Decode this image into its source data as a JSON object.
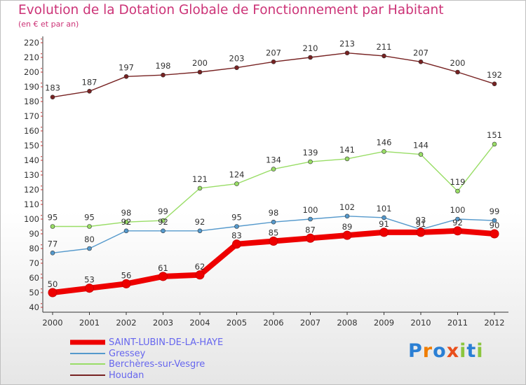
{
  "header": {
    "title": "Evolution de la Dotation Globale de Fonctionnement par Habitant",
    "subtitle": "(en € et par an)"
  },
  "chart_data": {
    "type": "line",
    "title": "Evolution de la Dotation Globale de Fonctionnement par Habitant",
    "subtitle": "(en € et par an)",
    "xlabel": "",
    "ylabel": "",
    "ylim": [
      40,
      220
    ],
    "yticks": [
      40,
      50,
      60,
      70,
      80,
      90,
      100,
      110,
      120,
      130,
      140,
      150,
      160,
      170,
      180,
      190,
      200,
      210,
      220
    ],
    "grid": false,
    "legend": "bottom-left",
    "categories": [
      "2000",
      "2001",
      "2002",
      "2003",
      "2004",
      "2005",
      "2006",
      "2007",
      "2008",
      "2009",
      "2010",
      "2011",
      "2012"
    ],
    "series": [
      {
        "name": "SAINT-LUBIN-DE-LA-HAYE",
        "color": "#ee0000",
        "values": [
          50,
          53,
          56,
          61,
          62,
          83,
          85,
          87,
          89,
          91,
          91,
          92,
          90
        ]
      },
      {
        "name": "Gressey",
        "color": "#5599cc",
        "values": [
          77,
          80,
          92,
          92,
          92,
          95,
          98,
          100,
          102,
          101,
          93,
          100,
          99
        ]
      },
      {
        "name": "Berchères-sur-Vesgre",
        "color": "#99dd66",
        "values": [
          95,
          95,
          98,
          99,
          121,
          124,
          134,
          139,
          141,
          146,
          144,
          119,
          151
        ]
      },
      {
        "name": "Houdan",
        "color": "#772222",
        "values": [
          183,
          187,
          197,
          198,
          200,
          203,
          207,
          210,
          213,
          211,
          207,
          200,
          192
        ]
      }
    ]
  },
  "brand": {
    "logo_text": "Proxiti",
    "letters": [
      "P",
      "r",
      "o",
      "x",
      "i",
      "t",
      "i"
    ],
    "colors": [
      "#2a7fd4",
      "#f07d00",
      "#2a7fd4",
      "#e94e1b",
      "#8cc63f",
      "#2a7fd4",
      "#8cc63f"
    ]
  }
}
